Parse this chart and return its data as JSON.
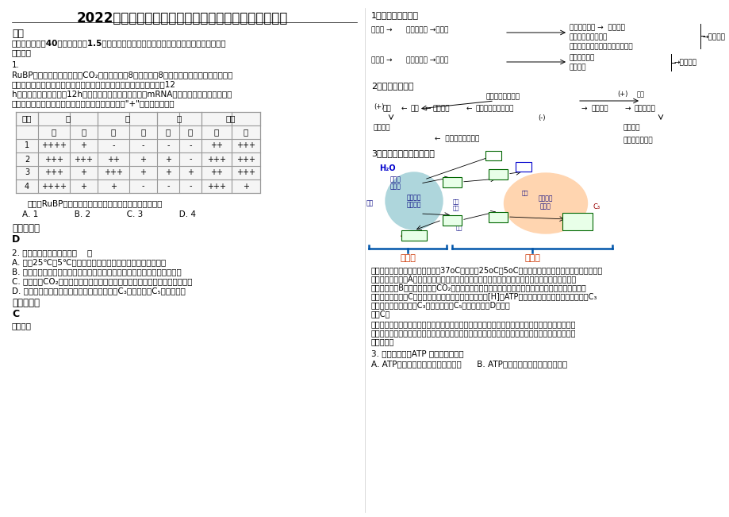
{
  "title": "2022年山东省淄博市第四中学高三生物期末试卷含解析",
  "bg_color": "#ffffff",
  "section1": "一、",
  "section1_desc_lines": [
    "选择题（本题共40小题，每小题1.5分，在每小题给出的四个选项中，只有一项是符合题目要",
    "求的。）"
  ],
  "q1_num": "1.",
  "q1_text_lines": [
    "RuBP羧化酶是植物体内催化CO₂固定的酶，由8个大亚基和8个小亚基构成。大亚基由叶绿体",
    "基因编码，小亚基由核基因编码。将豌豆根、茎、叶的一部分置于光下12",
    "h，另一部分置于黑暗中12h，然后从这些材料中分别提取mRNA，进行分子杂交。用于杂交",
    "的探针是四种不同基因片段（已标记）。结果如下（\"+\"表示杂交带）："
  ],
  "table_data": [
    [
      "1",
      "++++",
      "+",
      "-",
      "-",
      "-",
      "-",
      "++",
      "+++"
    ],
    [
      "2",
      "+++",
      "+++",
      "++",
      "+",
      "+",
      "-",
      "+++",
      "+++"
    ],
    [
      "3",
      "+++",
      "+",
      "+++",
      "+",
      "+",
      "+",
      "++",
      "+++"
    ],
    [
      "4",
      "++++",
      "+",
      "+",
      "-",
      "-",
      "-",
      "+++",
      "+"
    ]
  ],
  "q1_after": "如果用RuBP羧化酶的小亚基基因为探针，得到的结果是：",
  "q1_options": "    A. 1              B. 2              C. 3              D. 4",
  "answer_label": "参考答案：",
  "answer1": "D",
  "q2_num": "2. 下列有关说法正确的是（    ）",
  "q2_options": [
    "A. 人从25℃到5℃的环境时，机体散热量和皮肤血流量均减少",
    "B. 人吃的过咸时，垂体分泌的抗利尿激素增加，促进水的重吸收使尿量减少",
    "C. 环境中的CO₂浓度适当增加时，植物光补偿点向左移动而光饱和点向右移动",
    "D. 光照强度适当增加时，植物光合作用过程中C₃的含量增加C₅的含量减少"
  ],
  "answer_label2": "参考答案：",
  "answer2": "C",
  "analysis_label": "【分析】",
  "right_item1": "1、体温恒定调节：",
  "right_item2": "2、水盐平衡调节",
  "right_item3": "3、光合作用的过程图解：",
  "analysis_lines": [
    "【详解】人属于恒温动物，体温为37oC左右，从25oC到5oC的环境时，由于体内外温差增大，所以机",
    "体散热量会增加。A错误；人吃的过咸时，下丘脑分泌垂体释放的抗利尿激素增加，促进水的重吸收",
    "使尿量减少。B错误；环境中的CO₂浓度适当增加时，光合速率增大，所以植物光补偿点向左移动而光",
    "饱和点向右移动。C正确；光照强度适当增加时，产生的[H]和ATP增多，促进三碳化合物的还原，而C₃",
    "的合成基本不变，所以C₃的含量减少，C₅的含量增加。D错误。"
  ],
  "answer_c": "故选C。",
  "point_lines": [
    "【点睛】本题主要考查体温调节、水平衡调节和光合作用的相关知识，意在考查学生能运用所学知识",
    "与观点，通过比较、分析与综合等方法对某些生物学问题进行解释、推理，做出合理的判断或得出正",
    "确的结论。"
  ],
  "q3_num": "3. 以下关于酶和ATP 的叙述错误的是",
  "q3_options": "A. ATP的合成与分解都需要酶的催化      B. ATP和有机酶的化学元素组成相同"
}
